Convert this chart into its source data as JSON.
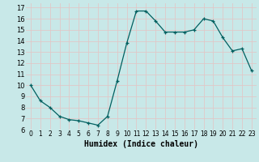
{
  "x": [
    0,
    1,
    2,
    3,
    4,
    5,
    6,
    7,
    8,
    9,
    10,
    11,
    12,
    13,
    14,
    15,
    16,
    17,
    18,
    19,
    20,
    21,
    22,
    23
  ],
  "y": [
    10,
    8.6,
    8.0,
    7.2,
    6.9,
    6.8,
    6.6,
    6.4,
    7.2,
    10.4,
    13.8,
    16.7,
    16.7,
    15.8,
    14.8,
    14.8,
    14.8,
    15.0,
    16.0,
    15.8,
    14.3,
    13.1,
    13.3,
    11.3
  ],
  "xlabel": "Humidex (Indice chaleur)",
  "xlim": [
    -0.5,
    23.5
  ],
  "ylim": [
    6,
    17.4
  ],
  "yticks": [
    6,
    7,
    8,
    9,
    10,
    11,
    12,
    13,
    14,
    15,
    16,
    17
  ],
  "xticks": [
    0,
    1,
    2,
    3,
    4,
    5,
    6,
    7,
    8,
    9,
    10,
    11,
    12,
    13,
    14,
    15,
    16,
    17,
    18,
    19,
    20,
    21,
    22,
    23
  ],
  "line_color": "#006060",
  "marker": "+",
  "bg_color": "#c8e8e8",
  "grid_color": "#e0c8c8",
  "xlabel_fontsize": 7,
  "tick_fontsize_x": 5.5,
  "tick_fontsize_y": 6
}
